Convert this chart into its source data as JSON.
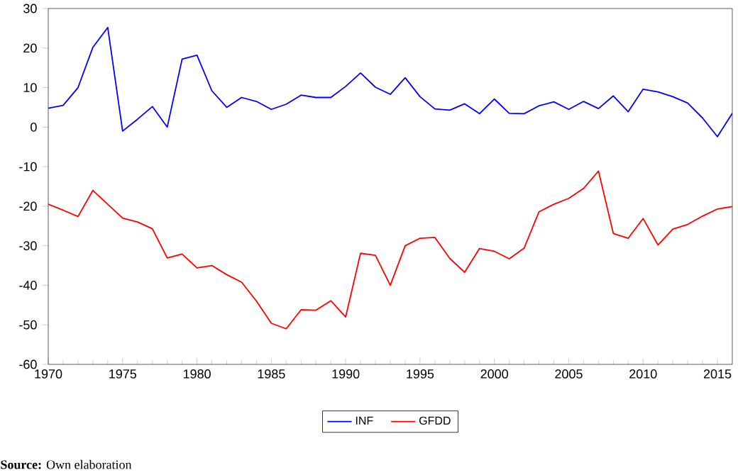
{
  "chart_data": {
    "type": "line",
    "x": [
      1970,
      1971,
      1972,
      1973,
      1974,
      1975,
      1976,
      1977,
      1978,
      1979,
      1980,
      1981,
      1982,
      1983,
      1984,
      1985,
      1986,
      1987,
      1988,
      1989,
      1990,
      1991,
      1992,
      1993,
      1994,
      1995,
      1996,
      1997,
      1998,
      1999,
      2000,
      2001,
      2002,
      2003,
      2004,
      2005,
      2006,
      2007,
      2008,
      2009,
      2010,
      2011,
      2012,
      2013,
      2014,
      2015,
      2016
    ],
    "series": [
      {
        "name": "INF",
        "color": "#0000ff",
        "values": [
          4.8,
          5.5,
          10,
          20.2,
          25.2,
          -1,
          2,
          5.2,
          0,
          17.2,
          18.2,
          9.2,
          5,
          7.5,
          6.5,
          4.5,
          5.8,
          8.1,
          7.5,
          7.5,
          10.3,
          13.7,
          10.1,
          8.3,
          12.5,
          7.7,
          4.6,
          4.3,
          5.9,
          3.4,
          7.1,
          3.5,
          3.4,
          5.4,
          6.4,
          4.5,
          6.5,
          4.7,
          7.9,
          3.9,
          9.6,
          8.9,
          7.7,
          6.1,
          2.3,
          -2.4,
          3.5
        ]
      },
      {
        "name": "GFDD",
        "color": "#ff0000",
        "values": [
          -19.5,
          -21,
          -22.6,
          -16,
          -19.5,
          -23,
          -24,
          -25.7,
          -33.1,
          -32.1,
          -35.6,
          -35,
          -37.3,
          -39.2,
          -44,
          -49.6,
          -51,
          -46.2,
          -46.3,
          -43.9,
          -48,
          -31.9,
          -32.4,
          -40,
          -30,
          -28.1,
          -27.9,
          -33.2,
          -36.7,
          -30.7,
          -31.4,
          -33.3,
          -30.6,
          -21.4,
          -19.5,
          -18,
          -15.5,
          -11.1,
          -26.9,
          -28.1,
          -23.1,
          -29.8,
          -25.8,
          -24.6,
          -22.5,
          -20.7,
          -20.1
        ]
      }
    ],
    "xlim": [
      1970,
      2016
    ],
    "xticks": [
      1970,
      1975,
      1980,
      1985,
      1990,
      1995,
      2000,
      2005,
      2010,
      2015
    ],
    "ylim": [
      -60,
      30
    ],
    "yticks": [
      -60,
      -50,
      -40,
      -30,
      -20,
      -10,
      0,
      10,
      20,
      30
    ],
    "legend": "bottom",
    "grid": false,
    "marker": "none",
    "line_style": "solid",
    "annotations": [
      "**Source:** Own elaboration"
    ]
  }
}
